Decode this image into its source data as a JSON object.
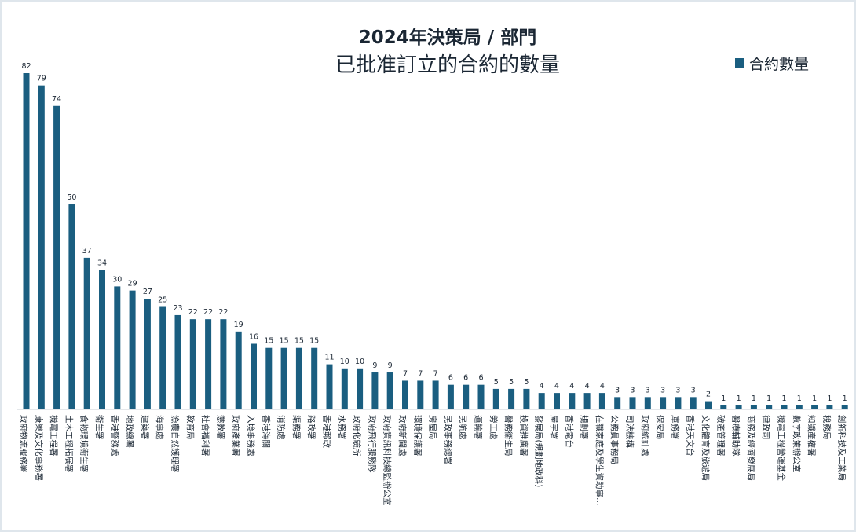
{
  "colors": {
    "bar": "#1a5e80",
    "text": "#1a2633",
    "axis": "#c9cfd4"
  },
  "chart_data": {
    "type": "bar",
    "title_line1": "2024年決策局 / 部門",
    "title_line2": "已批准訂立的合約的數量",
    "legend": "合約數量",
    "legend_position": "top-right",
    "grid": false,
    "ylim": [
      0,
      82
    ],
    "categories": [
      "政府物流服務署",
      "康樂及文化事務署",
      "機電工程署",
      "土木工程拓展署",
      "食物環境衞生署",
      "衞生署",
      "香港警務處",
      "地政總署",
      "建築署",
      "海事處",
      "漁農自然護理署",
      "教育局",
      "社會福利署",
      "懲教署",
      "政府產業署",
      "入境事務處",
      "香港海關",
      "消防處",
      "渠務署",
      "路政署",
      "香港郵政",
      "水務署",
      "政府化驗所",
      "政府飛行服務隊",
      "政府資訊科技總監辦公室",
      "政府新聞處",
      "環境保護署",
      "房屋局",
      "民政事務總署",
      "民航處",
      "運輸署",
      "勞工處",
      "醫務衞生局",
      "投資推廣署",
      "發展局(規劃地政科)",
      "屋宇署",
      "香港電台",
      "規劃署",
      "在職家庭及學生資助事…",
      "公務員事務局",
      "司法機構",
      "政府統計處",
      "保安局",
      "庫務署",
      "香港天文台",
      "文化體育及旅遊局",
      "破產管理署",
      "醫療輔助隊",
      "商務及經濟發展局",
      "律政司",
      "機電工程營運基金",
      "數字政策辦公室",
      "知識產權署",
      "稅務局",
      "創新科技及工業局"
    ],
    "values": [
      82,
      79,
      74,
      50,
      37,
      34,
      30,
      29,
      27,
      25,
      23,
      22,
      22,
      22,
      19,
      16,
      15,
      15,
      15,
      15,
      11,
      10,
      10,
      9,
      9,
      7,
      7,
      7,
      6,
      6,
      6,
      5,
      5,
      5,
      4,
      4,
      4,
      4,
      4,
      3,
      3,
      3,
      3,
      3,
      3,
      2,
      1,
      1,
      1,
      1,
      1,
      1,
      1,
      1,
      1
    ]
  }
}
